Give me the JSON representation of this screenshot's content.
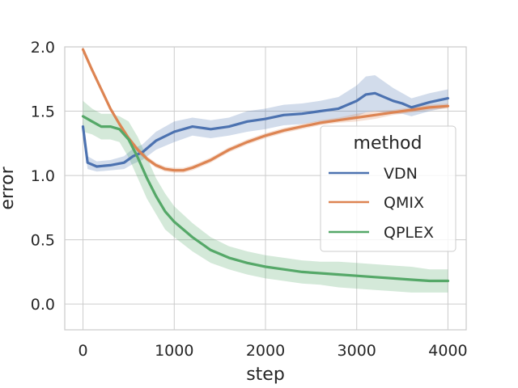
{
  "chart_data": {
    "type": "line",
    "title": "",
    "xlabel": "step",
    "ylabel": "error",
    "xlim": [
      -200,
      4200
    ],
    "ylim": [
      -0.2,
      2.0
    ],
    "xticks": [
      0,
      1000,
      2000,
      3000,
      4000
    ],
    "yticks": [
      0.0,
      0.5,
      1.0,
      1.5,
      2.0
    ],
    "xtick_labels": [
      "0",
      "1000",
      "2000",
      "3000",
      "4000"
    ],
    "ytick_labels": [
      "0.0",
      "0.5",
      "1.0",
      "1.5",
      "2.0"
    ],
    "grid": true,
    "legend": {
      "title": "method",
      "position": "right"
    },
    "series": [
      {
        "name": "VDN",
        "color": "#4c72b0",
        "x": [
          0,
          50,
          150,
          300,
          450,
          550,
          650,
          800,
          1000,
          1200,
          1400,
          1600,
          1800,
          2000,
          2200,
          2400,
          2600,
          2800,
          3000,
          3100,
          3200,
          3400,
          3500,
          3600,
          3800,
          4000
        ],
        "y": [
          1.38,
          1.1,
          1.07,
          1.08,
          1.1,
          1.15,
          1.18,
          1.27,
          1.34,
          1.38,
          1.36,
          1.38,
          1.42,
          1.44,
          1.47,
          1.48,
          1.5,
          1.52,
          1.58,
          1.63,
          1.64,
          1.58,
          1.56,
          1.53,
          1.57,
          1.6
        ],
        "band": [
          0.04,
          0.05,
          0.04,
          0.04,
          0.05,
          0.06,
          0.06,
          0.07,
          0.08,
          0.07,
          0.07,
          0.07,
          0.08,
          0.08,
          0.08,
          0.08,
          0.08,
          0.09,
          0.12,
          0.14,
          0.14,
          0.1,
          0.08,
          0.07,
          0.07,
          0.07
        ]
      },
      {
        "name": "QMIX",
        "color": "#dd8452",
        "x": [
          0,
          100,
          200,
          300,
          400,
          500,
          600,
          700,
          800,
          900,
          1000,
          1100,
          1200,
          1300,
          1400,
          1500,
          1600,
          1800,
          2000,
          2200,
          2400,
          2600,
          2800,
          3000,
          3200,
          3400,
          3600,
          3800,
          4000
        ],
        "y": [
          1.98,
          1.82,
          1.67,
          1.52,
          1.4,
          1.29,
          1.2,
          1.13,
          1.08,
          1.05,
          1.04,
          1.04,
          1.06,
          1.09,
          1.12,
          1.16,
          1.2,
          1.26,
          1.31,
          1.35,
          1.38,
          1.41,
          1.43,
          1.45,
          1.47,
          1.49,
          1.51,
          1.53,
          1.54
        ],
        "band": [
          0.01,
          0.01,
          0.01,
          0.02,
          0.02,
          0.02,
          0.02,
          0.02,
          0.02,
          0.02,
          0.02,
          0.02,
          0.02,
          0.02,
          0.02,
          0.02,
          0.02,
          0.02,
          0.02,
          0.02,
          0.02,
          0.02,
          0.02,
          0.03,
          0.03,
          0.02,
          0.02,
          0.02,
          0.02
        ]
      },
      {
        "name": "QPLEX",
        "color": "#55a868",
        "x": [
          0,
          100,
          200,
          300,
          400,
          500,
          600,
          700,
          800,
          900,
          1000,
          1200,
          1400,
          1600,
          1800,
          2000,
          2200,
          2400,
          2600,
          2800,
          3000,
          3200,
          3400,
          3600,
          3800,
          4000
        ],
        "y": [
          1.46,
          1.42,
          1.38,
          1.38,
          1.36,
          1.28,
          1.14,
          0.98,
          0.84,
          0.72,
          0.64,
          0.52,
          0.42,
          0.36,
          0.32,
          0.29,
          0.27,
          0.25,
          0.24,
          0.23,
          0.22,
          0.21,
          0.2,
          0.19,
          0.18,
          0.18
        ],
        "band": [
          0.12,
          0.1,
          0.1,
          0.1,
          0.1,
          0.14,
          0.16,
          0.16,
          0.14,
          0.14,
          0.12,
          0.11,
          0.1,
          0.09,
          0.09,
          0.09,
          0.09,
          0.09,
          0.09,
          0.1,
          0.1,
          0.1,
          0.1,
          0.1,
          0.09,
          0.09
        ]
      }
    ]
  }
}
